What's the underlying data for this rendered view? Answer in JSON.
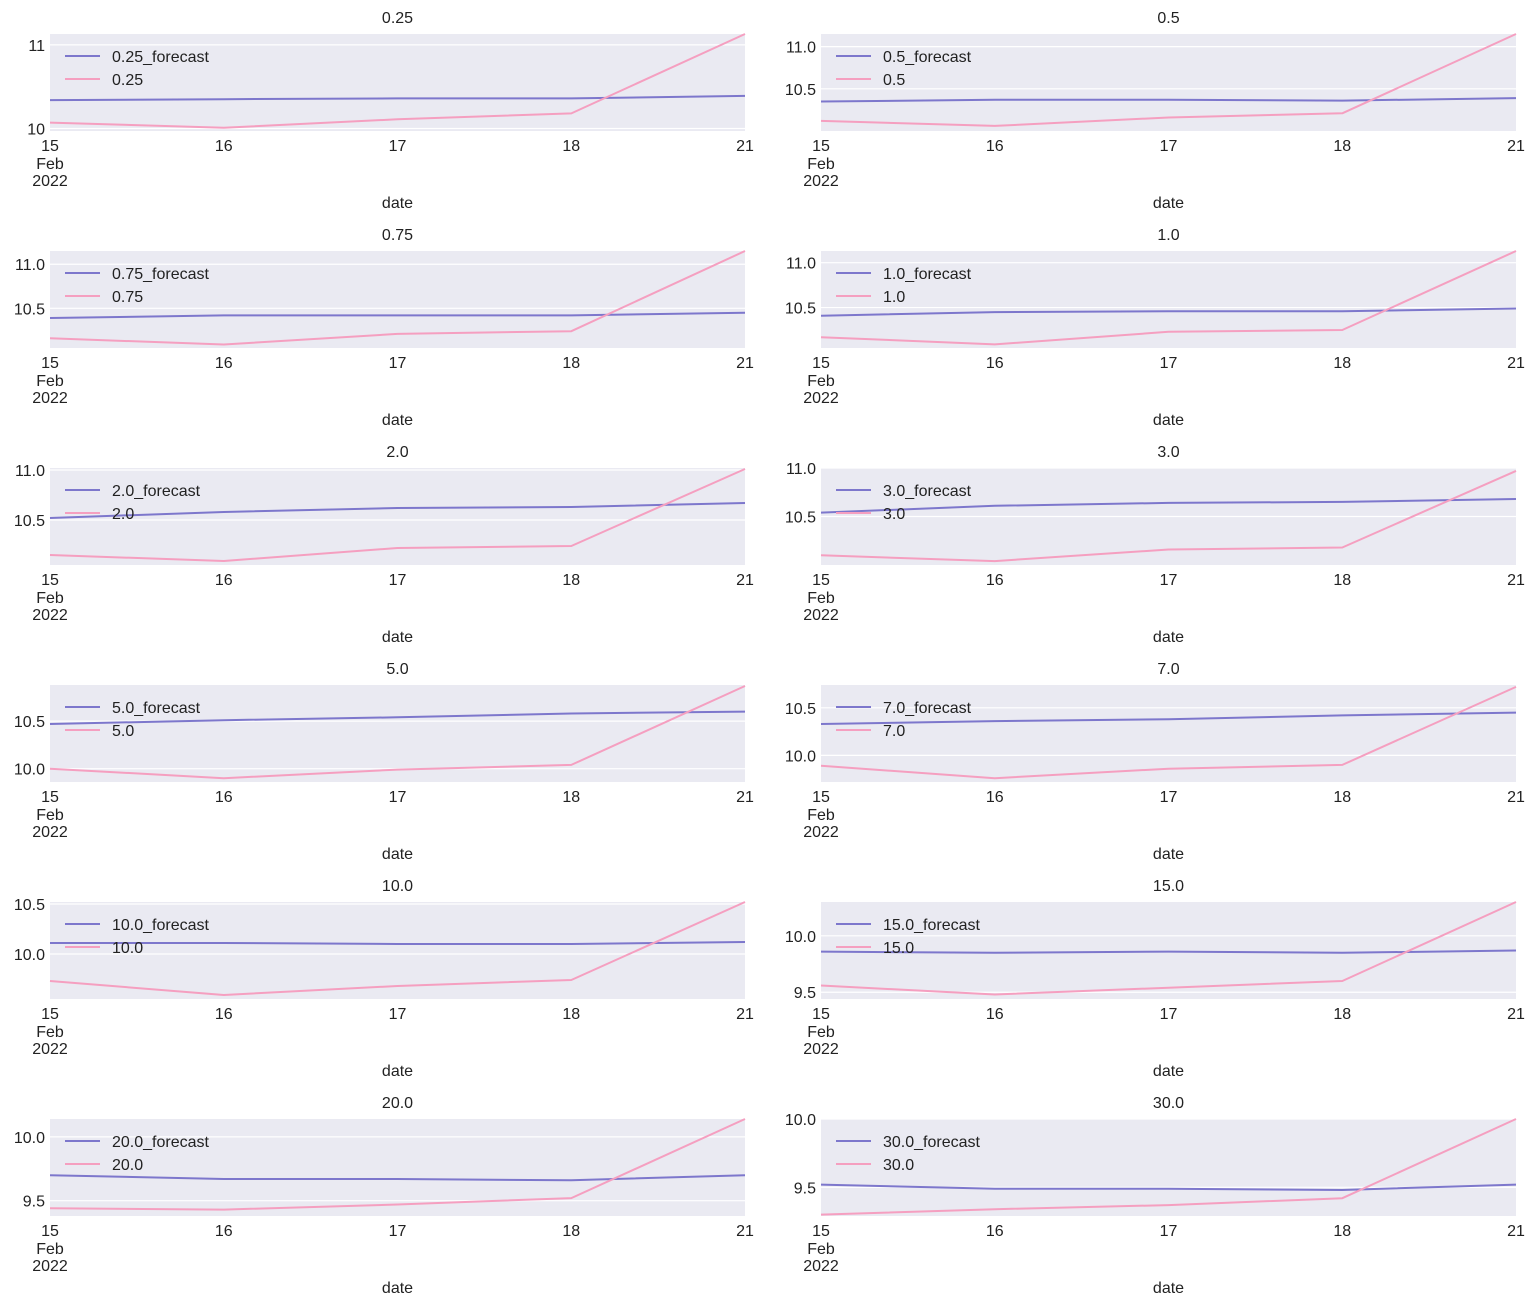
{
  "colors": {
    "forecast": "#7D77CC",
    "actual": "#F59FC0"
  },
  "chart_data": [
    {
      "type": "line",
      "title": "0.25",
      "xlabel": "date",
      "categories": [
        "15",
        "16",
        "17",
        "18",
        "21"
      ],
      "x_extra": [
        "Feb",
        "2022"
      ],
      "ylim": [
        9.97,
        11.13
      ],
      "yticks": [
        10,
        11
      ],
      "ytick_labels": [
        "10",
        "11"
      ],
      "legend_position": "upper-left",
      "series": [
        {
          "name": "0.25_forecast",
          "values": [
            10.34,
            10.35,
            10.36,
            10.36,
            10.39
          ]
        },
        {
          "name": "0.25",
          "values": [
            10.07,
            10.01,
            10.11,
            10.18,
            11.13
          ]
        }
      ]
    },
    {
      "type": "line",
      "title": "0.5",
      "xlabel": "date",
      "categories": [
        "15",
        "16",
        "17",
        "18",
        "21"
      ],
      "x_extra": [
        "Feb",
        "2022"
      ],
      "ylim": [
        10.0,
        11.15
      ],
      "yticks": [
        10.5,
        11.0
      ],
      "ytick_labels": [
        "10.5",
        "11.0"
      ],
      "legend_position": "upper-left",
      "series": [
        {
          "name": "0.5_forecast",
          "values": [
            10.35,
            10.37,
            10.37,
            10.36,
            10.39
          ]
        },
        {
          "name": "0.5",
          "values": [
            10.12,
            10.06,
            10.16,
            10.21,
            11.15
          ]
        }
      ]
    },
    {
      "type": "line",
      "title": "0.75",
      "xlabel": "date",
      "categories": [
        "15",
        "16",
        "17",
        "18",
        "21"
      ],
      "x_extra": [
        "Feb",
        "2022"
      ],
      "ylim": [
        10.05,
        11.15
      ],
      "yticks": [
        10.5,
        11.0
      ],
      "ytick_labels": [
        "10.5",
        "11.0"
      ],
      "legend_position": "upper-left",
      "series": [
        {
          "name": "0.75_forecast",
          "values": [
            10.39,
            10.42,
            10.42,
            10.42,
            10.45
          ]
        },
        {
          "name": "0.75",
          "values": [
            10.16,
            10.09,
            10.21,
            10.24,
            11.15
          ]
        }
      ]
    },
    {
      "type": "line",
      "title": "1.0",
      "xlabel": "date",
      "categories": [
        "15",
        "16",
        "17",
        "18",
        "21"
      ],
      "x_extra": [
        "Feb",
        "2022"
      ],
      "ylim": [
        10.05,
        11.13
      ],
      "yticks": [
        10.5,
        11.0
      ],
      "ytick_labels": [
        "10.5",
        "11.0"
      ],
      "legend_position": "upper-left",
      "series": [
        {
          "name": "1.0_forecast",
          "values": [
            10.41,
            10.45,
            10.46,
            10.46,
            10.49
          ]
        },
        {
          "name": "1.0",
          "values": [
            10.17,
            10.09,
            10.23,
            10.25,
            11.13
          ]
        }
      ]
    },
    {
      "type": "line",
      "title": "2.0",
      "xlabel": "date",
      "categories": [
        "15",
        "16",
        "17",
        "18",
        "21"
      ],
      "x_extra": [
        "Feb",
        "2022"
      ],
      "ylim": [
        10.05,
        11.02
      ],
      "yticks": [
        10.5,
        11.0
      ],
      "ytick_labels": [
        "10.5",
        "11.0"
      ],
      "legend_position": "upper-left",
      "series": [
        {
          "name": "2.0_forecast",
          "values": [
            10.52,
            10.58,
            10.62,
            10.63,
            10.67
          ]
        },
        {
          "name": "2.0",
          "values": [
            10.15,
            10.09,
            10.22,
            10.24,
            11.01
          ]
        }
      ]
    },
    {
      "type": "line",
      "title": "3.0",
      "xlabel": "date",
      "categories": [
        "15",
        "16",
        "17",
        "18",
        "21"
      ],
      "x_extra": [
        "Feb",
        "2022"
      ],
      "ylim": [
        10.0,
        11.0
      ],
      "yticks": [
        10.5,
        11.0
      ],
      "ytick_labels": [
        "10.5",
        "11.0"
      ],
      "legend_position": "upper-left",
      "series": [
        {
          "name": "3.0_forecast",
          "values": [
            10.54,
            10.61,
            10.64,
            10.65,
            10.68
          ]
        },
        {
          "name": "3.0",
          "values": [
            10.1,
            10.04,
            10.16,
            10.18,
            10.97
          ]
        }
      ]
    },
    {
      "type": "line",
      "title": "5.0",
      "xlabel": "date",
      "categories": [
        "15",
        "16",
        "17",
        "18",
        "21"
      ],
      "x_extra": [
        "Feb",
        "2022"
      ],
      "ylim": [
        9.86,
        10.88
      ],
      "yticks": [
        10.0,
        10.5
      ],
      "ytick_labels": [
        "10.0",
        "10.5"
      ],
      "legend_position": "upper-left",
      "series": [
        {
          "name": "5.0_forecast",
          "values": [
            10.47,
            10.51,
            10.54,
            10.58,
            10.6
          ]
        },
        {
          "name": "5.0",
          "values": [
            10.0,
            9.9,
            9.99,
            10.04,
            10.87
          ]
        }
      ]
    },
    {
      "type": "line",
      "title": "7.0",
      "xlabel": "date",
      "categories": [
        "15",
        "16",
        "17",
        "18",
        "21"
      ],
      "x_extra": [
        "Feb",
        "2022"
      ],
      "ylim": [
        9.72,
        10.74
      ],
      "yticks": [
        10.0,
        10.5
      ],
      "ytick_labels": [
        "10.0",
        "10.5"
      ],
      "legend_position": "upper-left",
      "series": [
        {
          "name": "7.0_forecast",
          "values": [
            10.33,
            10.36,
            10.38,
            10.42,
            10.45
          ]
        },
        {
          "name": "7.0",
          "values": [
            9.89,
            9.76,
            9.86,
            9.9,
            10.72
          ]
        }
      ]
    },
    {
      "type": "line",
      "title": "10.0",
      "xlabel": "date",
      "categories": [
        "15",
        "16",
        "17",
        "18",
        "21"
      ],
      "x_extra": [
        "Feb",
        "2022"
      ],
      "ylim": [
        9.55,
        10.52
      ],
      "yticks": [
        10.0,
        10.5
      ],
      "ytick_labels": [
        "10.0",
        "10.5"
      ],
      "legend_position": "upper-left",
      "series": [
        {
          "name": "10.0_forecast",
          "values": [
            10.11,
            10.11,
            10.1,
            10.1,
            10.12
          ]
        },
        {
          "name": "10.0",
          "values": [
            9.73,
            9.59,
            9.68,
            9.74,
            10.52
          ]
        }
      ]
    },
    {
      "type": "line",
      "title": "15.0",
      "xlabel": "date",
      "categories": [
        "15",
        "16",
        "17",
        "18",
        "21"
      ],
      "x_extra": [
        "Feb",
        "2022"
      ],
      "ylim": [
        9.44,
        10.3
      ],
      "yticks": [
        9.5,
        10.0
      ],
      "ytick_labels": [
        "9.5",
        "10.0"
      ],
      "legend_position": "upper-left",
      "series": [
        {
          "name": "15.0_forecast",
          "values": [
            9.86,
            9.85,
            9.86,
            9.85,
            9.87
          ]
        },
        {
          "name": "15.0",
          "values": [
            9.56,
            9.48,
            9.54,
            9.6,
            10.3
          ]
        }
      ]
    },
    {
      "type": "line",
      "title": "20.0",
      "xlabel": "date",
      "categories": [
        "15",
        "16",
        "17",
        "18",
        "21"
      ],
      "x_extra": [
        "Feb",
        "2022"
      ],
      "ylim": [
        9.38,
        10.14
      ],
      "yticks": [
        9.5,
        10.0
      ],
      "ytick_labels": [
        "9.5",
        "10.0"
      ],
      "legend_position": "upper-left",
      "series": [
        {
          "name": "20.0_forecast",
          "values": [
            9.7,
            9.67,
            9.67,
            9.66,
            9.7
          ]
        },
        {
          "name": "20.0",
          "values": [
            9.44,
            9.43,
            9.47,
            9.52,
            10.14
          ]
        }
      ]
    },
    {
      "type": "line",
      "title": "30.0",
      "xlabel": "date",
      "categories": [
        "15",
        "16",
        "17",
        "18",
        "21"
      ],
      "x_extra": [
        "Feb",
        "2022"
      ],
      "ylim": [
        9.29,
        10.0
      ],
      "yticks": [
        9.5,
        10.0
      ],
      "ytick_labels": [
        "9.5",
        "10.0"
      ],
      "legend_position": "upper-left",
      "series": [
        {
          "name": "30.0_forecast",
          "values": [
            9.52,
            9.49,
            9.49,
            9.48,
            9.52
          ]
        },
        {
          "name": "30.0",
          "values": [
            9.3,
            9.34,
            9.37,
            9.42,
            10.0
          ]
        }
      ]
    }
  ]
}
